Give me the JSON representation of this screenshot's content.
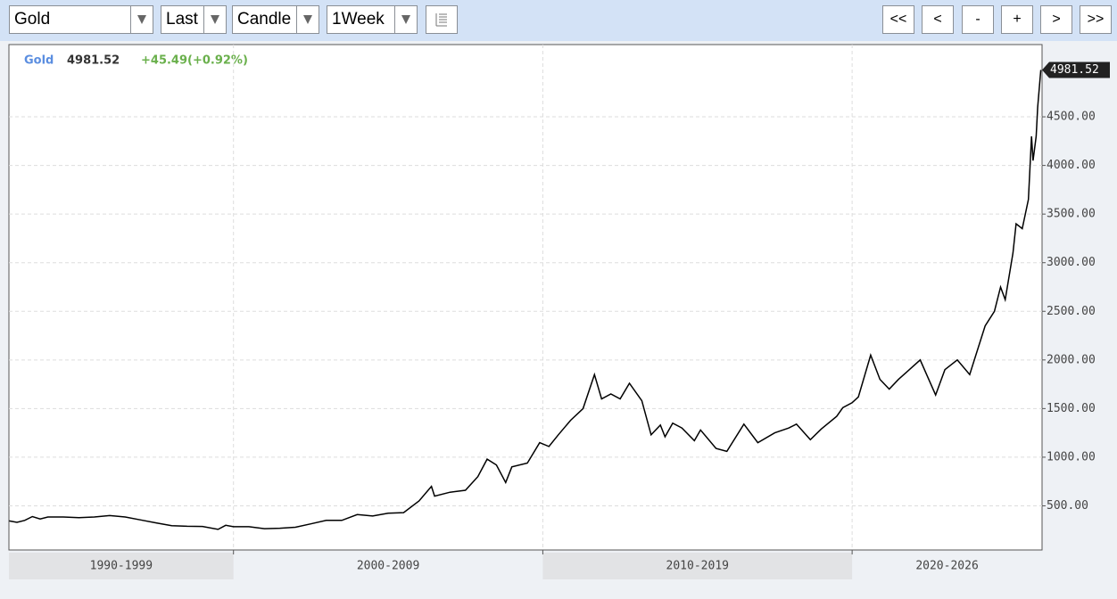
{
  "toolbar": {
    "dropdowns": [
      "Gold",
      "Last",
      "Candle",
      "1Week"
    ],
    "buttons": [
      "<<",
      "<",
      "-",
      "+",
      ">",
      ">>"
    ]
  },
  "chart_data": {
    "type": "line",
    "last": 4981.52,
    "change": "+45.49(+0.92%)",
    "x": [
      1992.75,
      1993.0,
      1993.25,
      1993.5,
      1993.75,
      1994.0,
      1994.5,
      1995.0,
      1995.5,
      1996.0,
      1996.5,
      1997.0,
      1997.5,
      1998.0,
      1998.5,
      1999.0,
      1999.5,
      1999.75,
      2000.0,
      2000.5,
      2001.0,
      2001.5,
      2002.0,
      2002.5,
      2003.0,
      2003.5,
      2004.0,
      2004.5,
      2005.0,
      2005.5,
      2006.0,
      2006.4,
      2006.5,
      2007.0,
      2007.5,
      2007.9,
      2008.2,
      2008.5,
      2008.8,
      2009.0,
      2009.5,
      2009.9,
      2010.2,
      2010.5,
      2010.9,
      2011.3,
      2011.67,
      2011.9,
      2012.2,
      2012.5,
      2012.8,
      2013.2,
      2013.5,
      2013.8,
      2013.95,
      2014.2,
      2014.5,
      2014.9,
      2015.1,
      2015.6,
      2015.95,
      2016.5,
      2016.95,
      2017.5,
      2017.95,
      2018.2,
      2018.65,
      2019.0,
      2019.5,
      2019.7,
      2020.0,
      2020.2,
      2020.6,
      2020.9,
      2021.2,
      2021.5,
      2022.2,
      2022.7,
      2023.0,
      2023.4,
      2023.8,
      2024.0,
      2024.3,
      2024.6,
      2024.8,
      2024.95,
      2025.2,
      2025.3,
      2025.5,
      2025.7,
      2025.8,
      2025.85,
      2025.95,
      2026.0,
      2026.1
    ],
    "series": [
      {
        "name": "Gold",
        "color": "#000000",
        "values": [
          345,
          330,
          350,
          390,
          365,
          385,
          385,
          378,
          385,
          400,
          385,
          355,
          325,
          295,
          290,
          288,
          258,
          300,
          285,
          285,
          265,
          270,
          280,
          315,
          350,
          350,
          410,
          395,
          425,
          430,
          550,
          700,
          600,
          640,
          660,
          800,
          980,
          920,
          740,
          900,
          940,
          1150,
          1110,
          1230,
          1380,
          1500,
          1850,
          1600,
          1650,
          1600,
          1760,
          1580,
          1230,
          1330,
          1210,
          1350,
          1300,
          1170,
          1280,
          1090,
          1060,
          1340,
          1150,
          1250,
          1300,
          1340,
          1180,
          1290,
          1420,
          1510,
          1560,
          1620,
          2050,
          1800,
          1700,
          1800,
          2000,
          1640,
          1900,
          2000,
          1850,
          2050,
          2350,
          2500,
          2750,
          2620,
          3100,
          3400,
          3350,
          3650,
          4300,
          4050,
          4300,
          4600,
          4981.52
        ]
      }
    ],
    "xlim": [
      1992.74,
      2026.14
    ],
    "xticks": [
      2000,
      2010,
      2020
    ],
    "x_bands": [
      "1990-1999",
      "2000-2009",
      "2010-2019",
      "2020-2026"
    ],
    "ylim": [
      46,
      5243
    ],
    "yticks": [
      {
        "value": 500,
        "label": "500.00"
      },
      {
        "value": 1000,
        "label": "1000.00"
      },
      {
        "value": 1500,
        "label": "1500.00"
      },
      {
        "value": 2000,
        "label": "2000.00"
      },
      {
        "value": 2500,
        "label": "2500.00"
      },
      {
        "value": 3000,
        "label": "3000.00"
      },
      {
        "value": 3500,
        "label": "3500.00"
      },
      {
        "value": 4000,
        "label": "4000.00"
      },
      {
        "value": 4500,
        "label": "4500.00"
      }
    ],
    "grid": true
  }
}
